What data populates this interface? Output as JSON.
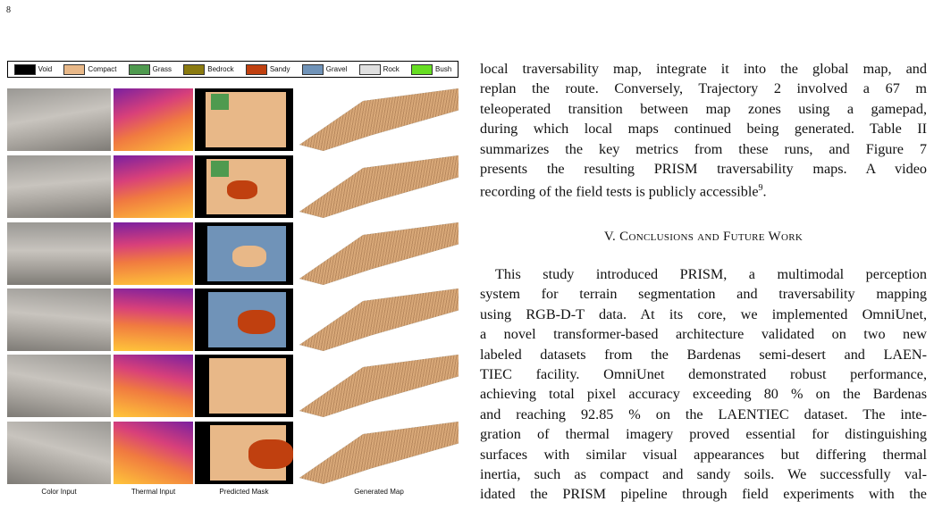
{
  "page_number": "8",
  "figure": {
    "legend": [
      {
        "label": "Void",
        "color": "#000000"
      },
      {
        "label": "Compact",
        "color": "#e8b888"
      },
      {
        "label": "Grass",
        "color": "#4f9a4f"
      },
      {
        "label": "Bedrock",
        "color": "#8a7a10"
      },
      {
        "label": "Sandy",
        "color": "#c0400f"
      },
      {
        "label": "Gravel",
        "color": "#7093b8"
      },
      {
        "label": "Rock",
        "color": "#e0e0e0"
      },
      {
        "label": "Bush",
        "color": "#66dd22"
      }
    ],
    "column_labels": [
      "Color Input",
      "Thermal Input",
      "Predicted Mask",
      "Generated Map"
    ]
  },
  "body": {
    "paragraph_1": {
      "lines": [
        "local traversability map, integrate it into the global map, and",
        "replan the route. Conversely, Trajectory 2 involved a 67 m",
        "teleoperated transition between map zones using a gamepad,",
        "during which local maps continued being generated. Table II",
        "summarizes the key metrics from these runs, and Figure 7",
        "presents the resulting PRISM traversability maps. A video"
      ],
      "last_line": {
        "text": "recording of the field tests is publicly accessible",
        "footnote": "9",
        "end": "."
      }
    },
    "section_heading": "V. Conclusions and Future Work",
    "paragraph_2": {
      "lines": [
        "This study introduced PRISM, a multimodal perception",
        "system for terrain segmentation and traversability mapping",
        "using RGB-D-T data. At its core, we implemented OmniUnet,",
        "a novel transformer-based architecture validated on two new",
        "labeled datasets from the Bardenas semi-desert and LAEN-",
        "TIEC facility. OmniUnet demonstrated robust performance,",
        "achieving total pixel accuracy exceeding 80 % on the Bardenas",
        "and reaching 92.85 % on the LAENTIEC dataset. The inte-",
        "gration of thermal imagery proved essential for distinguishing",
        "surfaces with similar visual appearances but differing thermal",
        "inertia, such as compact and sandy soils. We successfully val-",
        "idated the PRISM pipeline through field experiments with the"
      ]
    }
  }
}
